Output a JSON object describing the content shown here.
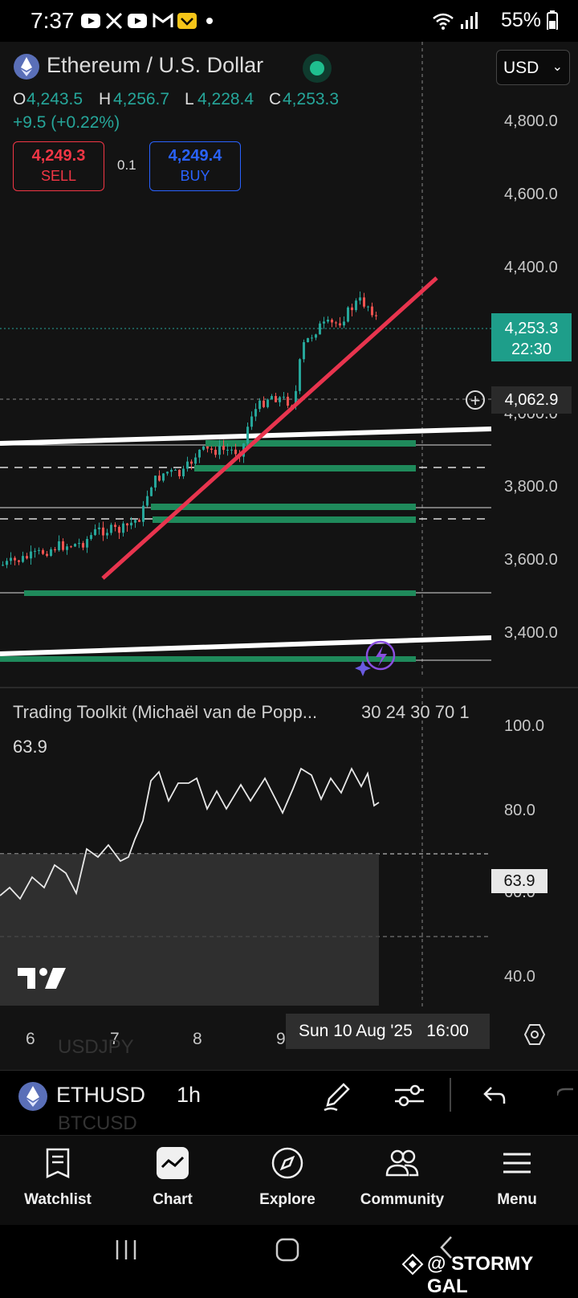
{
  "status_bar": {
    "time": "7:37",
    "battery": "55%",
    "notification_icons": [
      "youtube-icon",
      "x-icon",
      "youtube-icon",
      "gmail-icon",
      "app-icon",
      "dot-icon"
    ]
  },
  "header": {
    "symbol_title": "Ethereum / U.S. Dollar",
    "currency": "USD",
    "ohlc": {
      "o_label": "O",
      "o_value": "4,243.5",
      "h_label": "H",
      "h_value": "4,256.7",
      "l_label": "L",
      "l_value": "4,228.4",
      "c_label": "C",
      "c_value": "4,253.3"
    },
    "change": "+9.5 (+0.22%)",
    "sell": {
      "price": "4,249.3",
      "label": "SELL"
    },
    "spread": "0.1",
    "buy": {
      "price": "4,249.4",
      "label": "BUY"
    }
  },
  "price_axis": {
    "labels": [
      "4,800.0",
      "4,600.0",
      "4,400.0",
      "4,000.0",
      "3,800.0",
      "3,600.0",
      "3,400.0"
    ],
    "last_price": "4,253.3",
    "countdown": "22:30",
    "crosshair_price": "4,062.9"
  },
  "indicator": {
    "name": "Trading Toolkit (Michaël van de Popp...",
    "params": "30 24 30 70 1",
    "value": "63.9",
    "axis_labels": [
      "100.0",
      "80.0",
      "60.0",
      "40.0"
    ],
    "tag": "63.9"
  },
  "time_axis": {
    "ticks": [
      "6",
      "7",
      "8",
      "9"
    ],
    "crosshair_time": "Sun 10 Aug '25   16:00"
  },
  "toolbar": {
    "symbol": "ETHUSD",
    "interval": "1h",
    "ghost_above": "USDJPY",
    "ghost_below": "BTCUSD"
  },
  "bottom_nav": {
    "items": [
      {
        "label": "Watchlist",
        "icon": "watchlist-icon"
      },
      {
        "label": "Chart",
        "icon": "chart-icon"
      },
      {
        "label": "Explore",
        "icon": "compass-icon"
      },
      {
        "label": "Community",
        "icon": "community-icon"
      },
      {
        "label": "Menu",
        "icon": "menu-icon"
      }
    ]
  },
  "watermark": "@ STORMY GAL",
  "colors": {
    "up": "#26a69a",
    "down": "#ef5350",
    "trendline": "#e8344e",
    "accent_blue": "#2962ff",
    "background": "#131313"
  }
}
